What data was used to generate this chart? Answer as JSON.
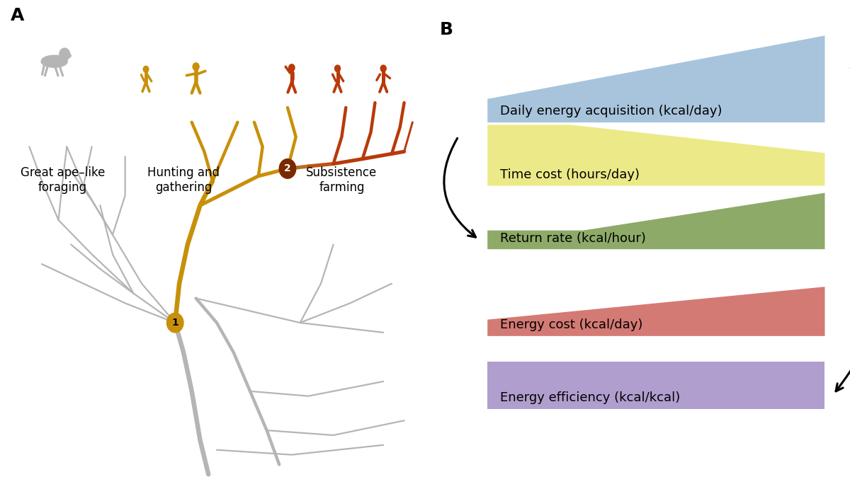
{
  "panel_a_label": "A",
  "panel_b_label": "B",
  "silhouette_labels": [
    "Great ape–like\nforaging",
    "Hunting and\ngathering",
    "Subsistence\nfarming"
  ],
  "trapezoid_labels": [
    "Daily energy acquisition (kcal/day)",
    "Time cost (hours/day)",
    "Return rate (kcal/hour)",
    "Energy cost (kcal/day)",
    "Energy efficiency (kcal/kcal)"
  ],
  "band_colors": [
    "#a8c4dc",
    "#ecea88",
    "#8daa68",
    "#d47a74",
    "#b09ece"
  ],
  "bg_color": "#ffffff",
  "gray_color": "#b5b5b5",
  "gold_color": "#c8900a",
  "dark_orange": "#b83a0a",
  "node1_color": "#c8900a",
  "node2_color": "#7a2800",
  "label_fontsize": 13,
  "panel_label_fontsize": 18,
  "silhouette_fontsize": 12
}
